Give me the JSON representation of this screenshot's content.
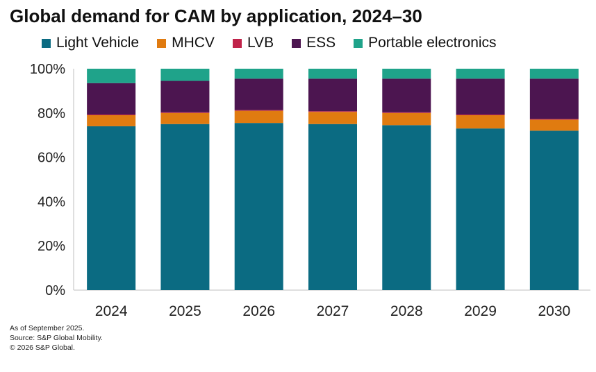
{
  "title": "Global demand for CAM by application, 2024–30",
  "footnotes": {
    "as_of": "As of September 2025.",
    "source": "Source: S&P Global Mobility.",
    "copyright": "© 2026 S&P Global."
  },
  "chart_data": {
    "type": "bar",
    "stacked": true,
    "categories": [
      "2024",
      "2025",
      "2026",
      "2027",
      "2028",
      "2029",
      "2030"
    ],
    "series": [
      {
        "name": "Light Vehicle",
        "color": "#0b6b82",
        "values": [
          74,
          75,
          75.5,
          75,
          74.5,
          73,
          72
        ]
      },
      {
        "name": "MHCV",
        "color": "#e07b10",
        "values": [
          5,
          5,
          5.5,
          5.5,
          5.5,
          6,
          5
        ]
      },
      {
        "name": "LVB",
        "color": "#c0234a",
        "values": [
          0.3,
          0.3,
          0.3,
          0.3,
          0.3,
          0.3,
          0.3
        ]
      },
      {
        "name": "ESS",
        "color": "#4c1550",
        "values": [
          14.2,
          14.2,
          14.2,
          14.7,
          15.2,
          16.2,
          18.2
        ]
      },
      {
        "name": "Portable electronics",
        "color": "#1fa38a",
        "values": [
          6.5,
          5.5,
          4.5,
          4.5,
          4.5,
          4.5,
          4.5
        ]
      }
    ],
    "ylim": [
      0,
      100
    ],
    "yticks": [
      "0%",
      "20%",
      "40%",
      "60%",
      "80%",
      "100%"
    ],
    "xlabel": "",
    "ylabel": "",
    "grid": false,
    "legend_position": "top"
  }
}
